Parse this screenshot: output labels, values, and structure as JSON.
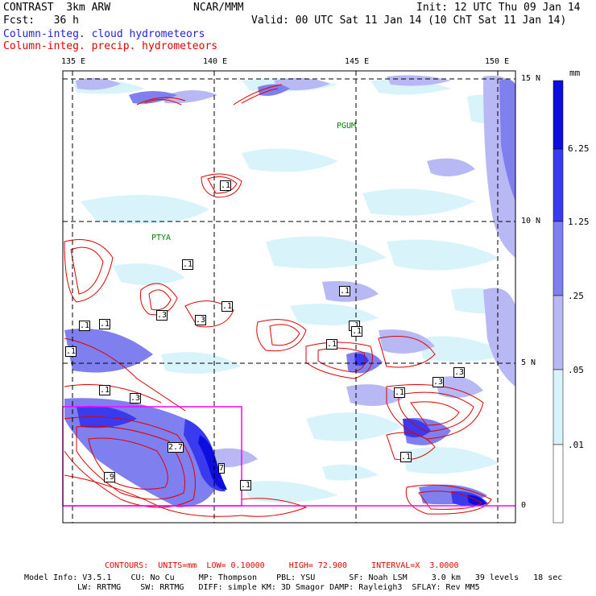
{
  "header": {
    "model": "CONTRAST  3km ARW",
    "org": "NCAR/MMM",
    "init": "Init: 12 UTC Thu 09 Jan 14",
    "fcst": "Fcst:   36 h",
    "valid": "Valid: 00 UTC Sat 11 Jan 14 (10 ChT Sat 11 Jan 14)",
    "field_cloud": "Column-integ. cloud hydrometeors",
    "field_precip": "Column-integ. precip. hydrometeors",
    "cloud_color": "#2020e0",
    "precip_color": "#e00000"
  },
  "map": {
    "lon_labels": [
      "135 E",
      "140 E",
      "145 E",
      "150 E"
    ],
    "lat_labels": [
      "15 N",
      "10 N",
      "5 N",
      "0"
    ],
    "stations": [
      "PGUM",
      "PTYA"
    ],
    "box_color": "#ff00ff",
    "contour_color": "#e00000"
  },
  "legend": {
    "unit": "mm",
    "labels": [
      "6.25",
      "1.25",
      ".25",
      ".05",
      ".01"
    ],
    "colors": [
      "#0d0de0",
      "#3a3aee",
      "#7f7ff0",
      "#b8b8f5",
      "#d8f4fa",
      "#ffffff"
    ]
  },
  "contour_labels": [
    ".1",
    ".1",
    ".1",
    ".3",
    ".3",
    ".1",
    ".1",
    ".1",
    ".1",
    ".1",
    ".3",
    ".1",
    ".1",
    ".3",
    ".1",
    ".1",
    ".3",
    "2.7",
    "7",
    ".9",
    ".1",
    ".1"
  ],
  "footer": {
    "contours": "CONTOURS:  UNITS=mm  LOW= 0.10000     HIGH= 72.900     INTERVAL=X  3.0000",
    "line1": "Model Info: V3.5.1    CU: No Cu     MP: Thompson    PBL: YSU       SF: Noah LSM     3.0 km   39 levels   18 sec",
    "line2": "LW: RRTMG    SW: RRTMG   DIFF: simple KM: 3D Smagor DAMP: Rayleigh3  SFLAY: Rev MM5"
  }
}
